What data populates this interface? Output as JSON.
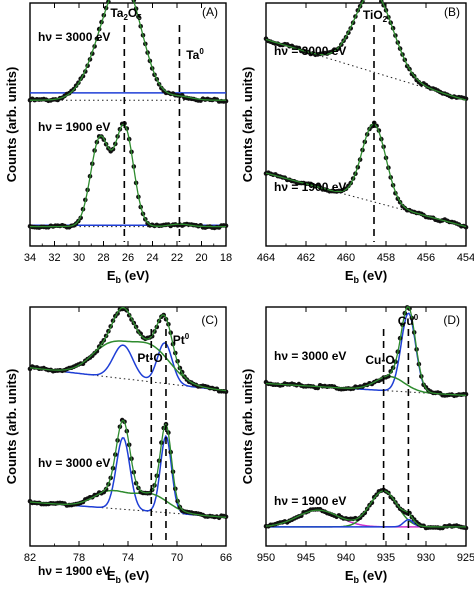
{
  "chart_data": [
    {
      "type": "line",
      "panel": "(A)",
      "xlabel": "E",
      "xlabel_sub": "b",
      "xlabel_unit": " (eV)",
      "ylabel": "Counts (arb. units)",
      "xlim": [
        34,
        18
      ],
      "xticks": [
        34,
        32,
        30,
        28,
        26,
        24,
        22,
        20,
        18
      ],
      "ylim": [
        0,
        1
      ],
      "annotations": [
        {
          "text": "hν = 3000 eV",
          "role": "spectrum-label"
        },
        {
          "text": "hν = 1900 eV",
          "role": "spectrum-label"
        },
        {
          "text": "Ta",
          "sub": "2",
          "text2": "O",
          "sub2": "5",
          "role": "peak-label"
        },
        {
          "text": "Ta",
          "sup": "0",
          "role": "peak-label"
        }
      ],
      "markers_x": [
        26.3,
        21.8
      ],
      "spectra": [
        {
          "offset": 0.55,
          "base": 0.05,
          "bg_slope": 0.0,
          "peaks": [
            {
              "x": 27.2,
              "w": 1.6,
              "h": 0.33
            },
            {
              "x": 25.8,
              "w": 1.3,
              "h": 0.22
            },
            {
              "x": 21.8,
              "w": 1.0,
              "h": 0.015
            }
          ],
          "components": [
            {
              "color": "#1f3fd6",
              "flat": 0.03
            }
          ]
        },
        {
          "offset": 0.05,
          "base": 0.03,
          "bg_slope": 0.0,
          "peaks": [
            {
              "x": 28.3,
              "w": 0.75,
              "h": 0.36
            },
            {
              "x": 26.3,
              "w": 0.75,
              "h": 0.41
            },
            {
              "x": 21.8,
              "w": 0.8,
              "h": 0.01
            }
          ],
          "components": [
            {
              "color": "#1f3fd6",
              "flat": 0.005
            }
          ]
        }
      ]
    },
    {
      "type": "line",
      "panel": "(B)",
      "xlabel": "E",
      "xlabel_sub": "b",
      "xlabel_unit": " (eV)",
      "ylabel": "Counts (arb. units)",
      "xlim": [
        464,
        454
      ],
      "xticks": [
        464,
        462,
        460,
        458,
        456,
        454
      ],
      "ylim": [
        0,
        1
      ],
      "annotations": [
        {
          "text": "hν = 3000 eV",
          "role": "spectrum-label"
        },
        {
          "text": "hν = 1900 eV",
          "role": "spectrum-label"
        },
        {
          "text": "TiO",
          "sub": "2",
          "role": "peak-label"
        }
      ],
      "markers_x": [
        458.6
      ],
      "spectra": [
        {
          "offset": 0.55,
          "base": 0.05,
          "bg_slope": 0.025,
          "peaks": [
            {
              "x": 458.6,
              "w": 0.95,
              "h": 0.33
            }
          ]
        },
        {
          "offset": 0.04,
          "base": 0.04,
          "bg_slope": 0.022,
          "peaks": [
            {
              "x": 458.6,
              "w": 0.6,
              "h": 0.32
            }
          ]
        }
      ]
    },
    {
      "type": "line",
      "panel": "(C)",
      "xlabel": "E",
      "xlabel_sub": "b",
      "xlabel_unit": " (eV)",
      "ylabel": "Counts (arb. units)",
      "xlim": [
        82,
        66
      ],
      "xticks": [
        82,
        78,
        74,
        70,
        66
      ],
      "ylim": [
        0,
        1
      ],
      "annotations": [
        {
          "text": "hν = 3000 eV",
          "role": "spectrum-label"
        },
        {
          "text": "hν = 1900 eV",
          "role": "spectrum-label"
        },
        {
          "text": "Pt-O",
          "role": "peak-label"
        },
        {
          "text": "Pt",
          "sup": "0",
          "role": "peak-label"
        }
      ],
      "markers_x": [
        72.1,
        70.9
      ],
      "spectra": [
        {
          "offset": 0.56,
          "base": 0.09,
          "bg_slope": 0.006,
          "peaks": [
            {
              "x": 74.4,
              "w": 0.8,
              "h": 0.14
            },
            {
              "x": 71.0,
              "w": 0.6,
              "h": 0.17
            },
            {
              "x": 75.4,
              "w": 1.6,
              "h": 0.13
            },
            {
              "x": 72.1,
              "w": 1.6,
              "h": 0.14
            }
          ],
          "components": [
            {
              "color": "#1f3fd6",
              "peaks": [
                0,
                1
              ]
            },
            {
              "color": "#2e8b2e",
              "peaks": [
                2,
                3
              ]
            }
          ]
        },
        {
          "offset": 0.04,
          "base": 0.08,
          "bg_slope": 0.004,
          "peaks": [
            {
              "x": 74.4,
              "w": 0.55,
              "h": 0.3
            },
            {
              "x": 70.9,
              "w": 0.45,
              "h": 0.32
            },
            {
              "x": 75.4,
              "w": 1.4,
              "h": 0.07
            },
            {
              "x": 72.1,
              "w": 1.4,
              "h": 0.07
            }
          ],
          "components": [
            {
              "color": "#1f3fd6",
              "peaks": [
                0,
                1
              ]
            },
            {
              "color": "#2e8b2e",
              "peaks": [
                2,
                3
              ]
            }
          ]
        }
      ]
    },
    {
      "type": "line",
      "panel": "(D)",
      "xlabel": "E",
      "xlabel_sub": "b",
      "xlabel_unit": " (eV)",
      "ylabel": "Counts (arb. units)",
      "xlim": [
        950,
        925
      ],
      "xticks": [
        950,
        945,
        940,
        935,
        930,
        925
      ],
      "ylim": [
        0,
        1
      ],
      "annotations": [
        {
          "text": "hν = 3000 eV",
          "role": "spectrum-label"
        },
        {
          "text": "hν = 1900 eV",
          "role": "spectrum-label"
        },
        {
          "text": "Cu-O",
          "role": "peak-label"
        },
        {
          "text": "Cu",
          "sup": "0",
          "role": "peak-label"
        }
      ],
      "markers_x": [
        935.3,
        932.2
      ],
      "spectra": [
        {
          "offset": 0.55,
          "base": 0.08,
          "bg_slope": 0.002,
          "peaks": [
            {
              "x": 932.2,
              "w": 0.9,
              "h": 0.33
            },
            {
              "x": 934.5,
              "w": 1.8,
              "h": 0.06
            }
          ],
          "components": [
            {
              "color": "#1f3fd6",
              "peaks": [
                0
              ]
            },
            {
              "color": "#2e8b2e",
              "peaks": [
                1
              ]
            }
          ]
        },
        {
          "offset": 0.04,
          "base": 0.04,
          "bg_slope": 0.0,
          "peaks": [
            {
              "x": 935.3,
              "w": 1.7,
              "h": 0.15
            },
            {
              "x": 943.5,
              "w": 2.6,
              "h": 0.07
            },
            {
              "x": 932.2,
              "w": 0.6,
              "h": 0.03
            }
          ],
          "components": [
            {
              "color": "#cc33cc",
              "peaks": [
                1
              ],
              "flat": 0.0
            },
            {
              "color": "#2e8b2e",
              "peaks": [
                0
              ]
            },
            {
              "color": "#1f3fd6",
              "peaks": [
                2
              ]
            }
          ]
        }
      ]
    }
  ]
}
